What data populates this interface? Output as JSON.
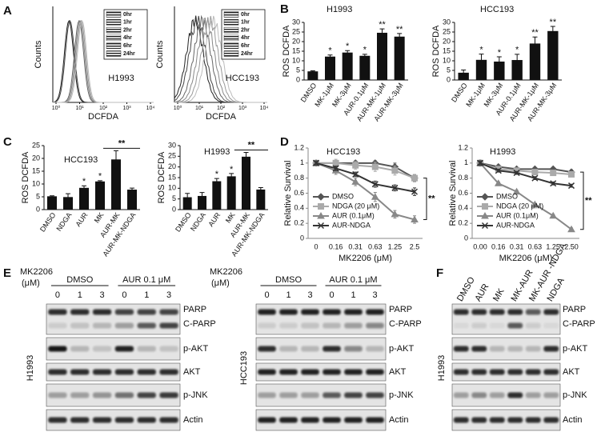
{
  "panel_labels": [
    "A",
    "B",
    "C",
    "D",
    "E",
    "F"
  ],
  "flow": {
    "y_label": "Counts",
    "x_label": "DCFDA",
    "x_ticks": [
      "10⁰",
      "10¹",
      "10²",
      "10³",
      "10⁴"
    ],
    "legend": [
      "0hr",
      "1hr",
      "2hr",
      "4hr",
      "6hr",
      "24hr"
    ],
    "samples": [
      "H1993",
      "HCC193"
    ]
  },
  "chart_data": [
    {
      "type": "bar",
      "title": "H1993",
      "y_label": "ROS DCFDA",
      "categories": [
        "DMSO",
        "MK-1μM",
        "MK-3μM",
        "AUR-0.1μM",
        "AUR-MK-1μM",
        "AUR-MK-3μM"
      ],
      "values": [
        4.5,
        12.2,
        14.3,
        12.6,
        24.6,
        22.6
      ],
      "errors": [
        0.3,
        0.8,
        1.0,
        0.8,
        2.0,
        1.6
      ],
      "significance": [
        null,
        "*",
        "*",
        "*",
        "**",
        "**"
      ],
      "color": "#111111",
      "ylim": [
        0,
        30
      ],
      "yticks": [
        0,
        5,
        10,
        15,
        20,
        25,
        30
      ]
    },
    {
      "type": "bar",
      "title": "HCC193",
      "y_label": "ROS DCFDA",
      "categories": [
        "DMSO",
        "MK-1μM",
        "MK-3μM",
        "AUR-0.1μM",
        "AUR-MK-1μM",
        "AUR-MK-3μM"
      ],
      "values": [
        3.8,
        10.5,
        9.6,
        10.4,
        19,
        25.5
      ],
      "errors": [
        1.4,
        3,
        2.5,
        3,
        3.4,
        2.4
      ],
      "significance": [
        null,
        "*",
        "*",
        "*",
        "**",
        "**"
      ],
      "color": "#111111",
      "ylim": [
        0,
        30
      ],
      "yticks": [
        0,
        5,
        10,
        15,
        20,
        25,
        30
      ]
    },
    {
      "type": "bar",
      "title": "HCC193",
      "y_label": "ROS DCFDA",
      "categories": [
        "DMSO",
        "NDGA",
        "AUR",
        "MK",
        "AUR-MK",
        "AUR-MK-NDGA"
      ],
      "values": [
        5.2,
        4.9,
        8.5,
        11,
        19.6,
        7.8
      ],
      "errors": [
        0.2,
        1.3,
        0.8,
        0.3,
        3.4,
        0.6
      ],
      "significance": [
        null,
        null,
        "*",
        "*",
        null,
        null
      ],
      "bracket_label": "**",
      "color": "#111111",
      "ylim": [
        0,
        25
      ],
      "yticks": [
        0,
        5,
        10,
        15,
        20,
        25
      ]
    },
    {
      "type": "bar",
      "title": "H1993",
      "y_label": "ROS DCFDA",
      "categories": [
        "DMSO",
        "NDGA",
        "AUR",
        "MK",
        "AUR-MK",
        "AUR-MK-NDGA"
      ],
      "values": [
        5.8,
        6.4,
        13.3,
        15.6,
        24.8,
        9.4
      ],
      "errors": [
        1.8,
        1.6,
        1.3,
        1.3,
        2,
        0.9
      ],
      "significance": [
        null,
        null,
        "*",
        "*",
        null,
        null
      ],
      "bracket_label": "**",
      "color": "#111111",
      "ylim": [
        0,
        30
      ],
      "yticks": [
        0,
        5,
        10,
        15,
        20,
        25,
        30
      ]
    },
    {
      "type": "line",
      "title": "HCC193",
      "x_label": "MK2206 (μM)",
      "y_label": "Relative Survival",
      "categories": [
        "0",
        "0.16",
        "0.31",
        "0.63",
        "1.25",
        "2.5"
      ],
      "ylim": [
        0,
        1.2
      ],
      "yticks": [
        0,
        0.2,
        0.4,
        0.6,
        0.8,
        1,
        1.2
      ],
      "annotation": "**",
      "legend": "lower left",
      "series": [
        {
          "name": "DMSO",
          "color": "#555555",
          "marker": "diamond",
          "values": [
            1,
            1,
            1,
            1,
            0.95,
            0.8
          ],
          "errors": [
            0.02,
            0.02,
            0.03,
            0.03,
            0.05,
            0.04
          ]
        },
        {
          "name": "NDGA (20 μM)",
          "color": "#aaaaaa",
          "marker": "square",
          "values": [
            1,
            1,
            0.97,
            0.95,
            0.9,
            0.8
          ],
          "errors": [
            0.03,
            0.05,
            0.05,
            0.06,
            0.06,
            0.05
          ]
        },
        {
          "name": "AUR (0.1μM)",
          "color": "#888888",
          "marker": "triangle",
          "values": [
            1,
            0.9,
            0.75,
            0.55,
            0.32,
            0.25
          ],
          "errors": [
            0.02,
            0.05,
            0.05,
            0.06,
            0.05,
            0.05
          ]
        },
        {
          "name": "AUR-NDGA",
          "color": "#333333",
          "marker": "x",
          "values": [
            1,
            0.93,
            0.85,
            0.72,
            0.67,
            0.62
          ],
          "errors": [
            0.03,
            0.03,
            0.03,
            0.04,
            0.04,
            0.05
          ]
        }
      ]
    },
    {
      "type": "line",
      "title": "H1993",
      "x_label": "MK2206 (μM)",
      "y_label": "Relative Survival",
      "categories": [
        "0.00",
        "0.16",
        "0.31",
        "0.63",
        "1.25",
        "2.50"
      ],
      "ylim": [
        0,
        1.2
      ],
      "yticks": [
        0,
        0.2,
        0.4,
        0.6,
        0.8,
        1,
        1.2
      ],
      "annotation": "**",
      "legend": "lower left",
      "series": [
        {
          "name": "DMSO",
          "color": "#555555",
          "marker": "diamond",
          "values": [
            1,
            0.95,
            0.92,
            0.92,
            0.92,
            0.88
          ],
          "errors": [
            0.03,
            0.02,
            0.02,
            0.02,
            0.02,
            0.03
          ]
        },
        {
          "name": "NDGA (20 μM)",
          "color": "#aaaaaa",
          "marker": "square",
          "values": [
            1,
            0.92,
            0.9,
            0.88,
            0.87,
            0.85
          ],
          "errors": [
            0.03,
            0.02,
            0.02,
            0.02,
            0.02,
            0.03
          ]
        },
        {
          "name": "AUR (0.1μM)",
          "color": "#888888",
          "marker": "triangle",
          "values": [
            1,
            0.73,
            0.62,
            0.45,
            0.3,
            0.12
          ],
          "errors": [
            0.04,
            0.02,
            0.02,
            0.02,
            0.02,
            0.02
          ]
        },
        {
          "name": "AUR-NDGA",
          "color": "#333333",
          "marker": "x",
          "values": [
            1,
            0.9,
            0.87,
            0.8,
            0.73,
            0.7
          ],
          "errors": [
            0.03,
            0.02,
            0.02,
            0.02,
            0.02,
            0.02
          ]
        }
      ]
    }
  ],
  "blots": [
    {
      "treatment": "MK2206",
      "unit": "(μM)",
      "groups": [
        "DMSO",
        "AUR 0.1 μM"
      ],
      "lanes": [
        "0",
        "1",
        "3",
        "0",
        "1",
        "3"
      ],
      "cell_line": "H1993",
      "bands": [
        "PARP",
        "C-PARP",
        "p-AKT",
        "AKT",
        "p-JNK",
        "Actin"
      ]
    },
    {
      "treatment": "MK2206",
      "unit": "(μM)",
      "groups": [
        "DMSO",
        "AUR 0.1 μM"
      ],
      "lanes": [
        "0",
        "1",
        "3",
        "0",
        "1",
        "3"
      ],
      "cell_line": "HCC193",
      "bands": [
        "PARP",
        "C-PARP",
        "p-AKT",
        "AKT",
        "p-JNK",
        "Actin"
      ]
    },
    {
      "lanes": [
        "DMSO",
        "AUR",
        "MK",
        "MK-AUR",
        "MK-AUR -NDGA",
        "NDGA"
      ],
      "cell_line": "H1993",
      "bands": [
        "PARP",
        "C-PARP",
        "p-AKT",
        "AKT",
        "p-JNK",
        "Actin"
      ]
    }
  ]
}
